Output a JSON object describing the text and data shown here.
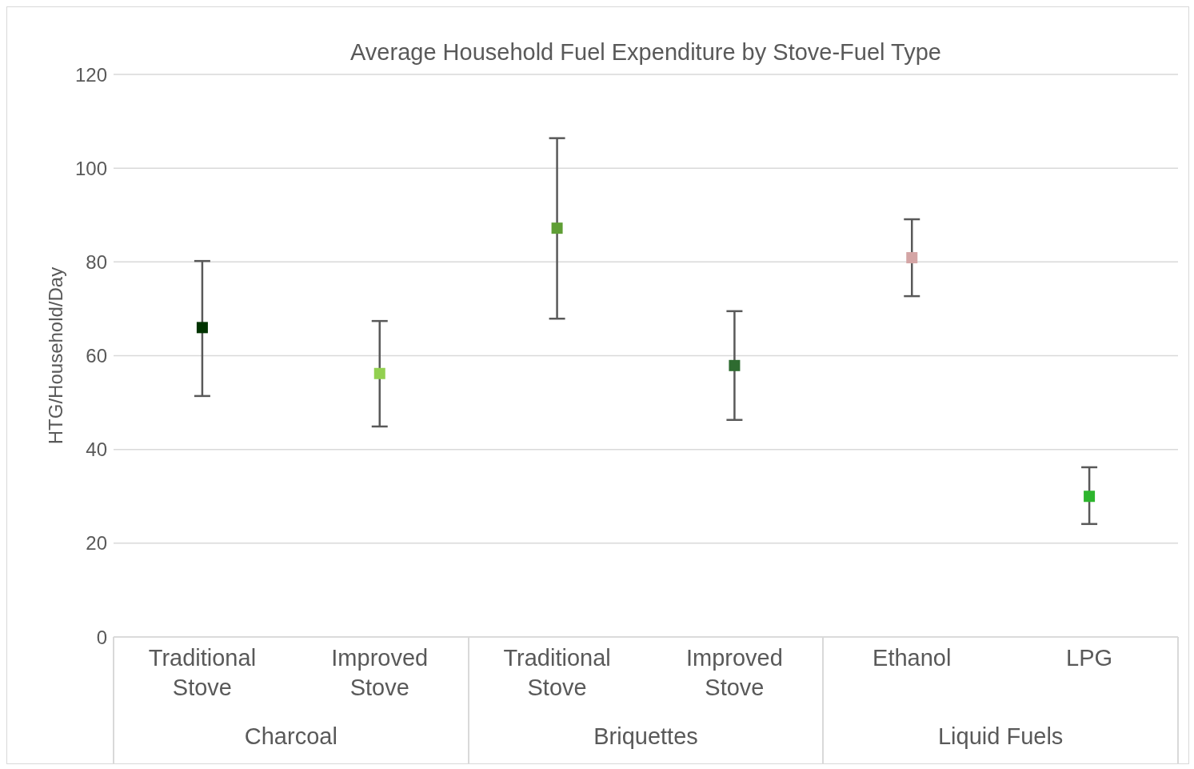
{
  "chart_data": {
    "type": "scatter",
    "title": "Average Household Fuel Expenditure by Stove-Fuel Type",
    "ylabel": "HTG/Household/Day",
    "categories": [
      "Traditional Stove",
      "Improved Stove",
      "Traditional Stove",
      "Improved Stove",
      "Ethanol",
      "LPG"
    ],
    "values": [
      66,
      56.2,
      87.2,
      57.9,
      80.9,
      30
    ],
    "colors": [
      "#003300",
      "#92d050",
      "#5f9e35",
      "#2e6b30",
      "#d4a5a5",
      "#2db52d"
    ],
    "errors": [
      [
        51.4,
        80.2
      ],
      [
        44.9,
        67.4
      ],
      [
        67.9,
        106.4
      ],
      [
        46.3,
        69.5
      ],
      [
        72.7,
        89.1
      ],
      [
        24.1,
        36.2
      ]
    ],
    "annotations": [
      "Charcoal",
      "Briquettes",
      "Liquid Fuels"
    ],
    "ylim": [
      0,
      120
    ],
    "yticks": [
      0,
      20,
      40,
      60,
      80,
      100,
      120
    ],
    "grid": "y",
    "legend": false,
    "marker": "square"
  }
}
